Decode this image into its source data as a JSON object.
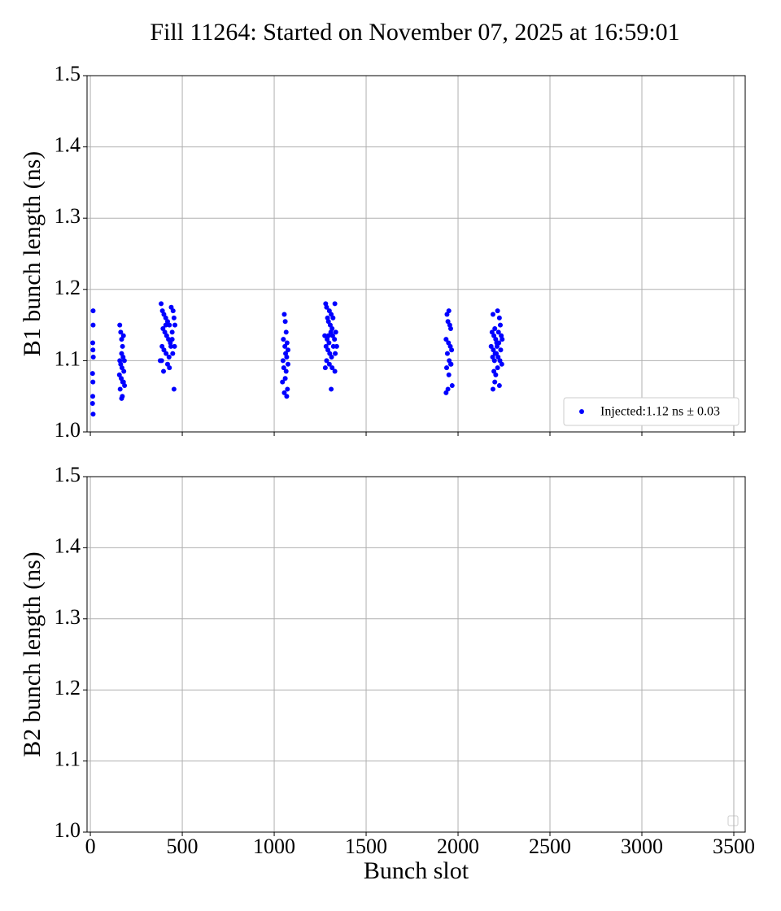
{
  "title": "Fill 11264: Started on November 07, 2025 at 16:59:01",
  "chart_data": [
    {
      "type": "scatter",
      "ylabel": "B1 bunch length (ns)",
      "xlim": [
        -18,
        3562
      ],
      "ylim": [
        1.0,
        1.5
      ],
      "xticks": [
        0,
        500,
        1000,
        1500,
        2000,
        2500,
        3000,
        3500
      ],
      "yticks": [
        {
          "value": 1.0,
          "label": "1.0"
        },
        1.1,
        1.2,
        1.3,
        1.4,
        1.5
      ],
      "xticklabels": false,
      "grid": true,
      "legend": "lower right",
      "series": [
        {
          "name": "Injected:1.12 ns ± 0.03",
          "color": "#0000ff",
          "x": [
            15,
            15,
            13,
            14,
            16,
            12,
            14,
            13,
            12,
            15,
            160,
            165,
            170,
            175,
            180,
            160,
            170,
            178,
            185,
            165,
            172,
            182,
            158,
            168,
            176,
            186,
            162,
            174,
            180,
            170,
            385,
            392,
            400,
            410,
            420,
            430,
            440,
            450,
            455,
            395,
            405,
            415,
            425,
            435,
            445,
            460,
            390,
            400,
            412,
            428,
            438,
            448,
            388,
            398,
            420,
            430,
            445,
            458,
            380,
            410,
            455,
            1055,
            1060,
            1065,
            1050,
            1070,
            1058,
            1062,
            1068,
            1048,
            1075,
            1052,
            1065,
            1060,
            1072,
            1045,
            1055,
            1068,
            1075,
            1280,
            1285,
            1300,
            1310,
            1330,
            1290,
            1295,
            1305,
            1315,
            1320,
            1335,
            1275,
            1288,
            1298,
            1308,
            1318,
            1328,
            1340,
            1282,
            1292,
            1302,
            1312,
            1322,
            1332,
            1285,
            1300,
            1315,
            1330,
            1310,
            1278,
            1295,
            1940,
            1950,
            1945,
            1955,
            1960,
            1935,
            1948,
            1958,
            1965,
            1942,
            1952,
            1962,
            1938,
            1950,
            1960,
            1945,
            1935,
            1968,
            2190,
            2200,
            2215,
            2225,
            2230,
            2185,
            2195,
            2205,
            2210,
            2220,
            2235,
            2240,
            2180,
            2192,
            2202,
            2212,
            2222,
            2232,
            2188,
            2198,
            2208,
            2218,
            2228,
            2238,
            2195,
            2205,
            2215,
            2200,
            2190,
            2225
          ],
          "values": [
            1.17,
            1.15,
            1.125,
            1.115,
            1.105,
            1.082,
            1.07,
            1.05,
            1.04,
            1.025,
            1.15,
            1.14,
            1.13,
            1.12,
            1.135,
            1.1,
            1.11,
            1.105,
            1.1,
            1.095,
            1.09,
            1.085,
            1.08,
            1.075,
            1.07,
            1.065,
            1.06,
            1.05,
            1.07,
            1.047,
            1.18,
            1.17,
            1.165,
            1.16,
            1.155,
            1.15,
            1.175,
            1.17,
            1.16,
            1.145,
            1.14,
            1.135,
            1.13,
            1.125,
            1.14,
            1.15,
            1.12,
            1.115,
            1.11,
            1.105,
            1.12,
            1.11,
            1.1,
            1.085,
            1.095,
            1.09,
            1.13,
            1.12,
            1.1,
            1.15,
            1.06,
            1.165,
            1.155,
            1.14,
            1.13,
            1.125,
            1.12,
            1.11,
            1.105,
            1.1,
            1.095,
            1.09,
            1.085,
            1.075,
            1.06,
            1.07,
            1.055,
            1.05,
            1.115,
            1.18,
            1.175,
            1.17,
            1.165,
            1.18,
            1.16,
            1.155,
            1.15,
            1.145,
            1.16,
            1.14,
            1.135,
            1.13,
            1.125,
            1.14,
            1.135,
            1.13,
            1.12,
            1.12,
            1.115,
            1.11,
            1.105,
            1.12,
            1.11,
            1.1,
            1.095,
            1.09,
            1.085,
            1.06,
            1.09,
            1.135,
            1.165,
            1.17,
            1.155,
            1.15,
            1.145,
            1.13,
            1.125,
            1.12,
            1.115,
            1.11,
            1.1,
            1.095,
            1.09,
            1.08,
            1.095,
            1.06,
            1.055,
            1.065,
            1.165,
            1.145,
            1.17,
            1.16,
            1.15,
            1.14,
            1.135,
            1.13,
            1.125,
            1.14,
            1.135,
            1.13,
            1.12,
            1.115,
            1.11,
            1.12,
            1.125,
            1.115,
            1.105,
            1.1,
            1.11,
            1.105,
            1.1,
            1.095,
            1.085,
            1.08,
            1.09,
            1.07,
            1.06,
            1.065
          ]
        }
      ]
    },
    {
      "type": "scatter",
      "ylabel": "B2 bunch length (ns)",
      "xlabel": "Bunch slot",
      "xlim": [
        -18,
        3562
      ],
      "ylim": [
        1.0,
        1.5
      ],
      "xticks": [
        0,
        500,
        1000,
        1500,
        2000,
        2500,
        3000,
        3500
      ],
      "yticks": [
        {
          "value": 1.0,
          "label": "1.0"
        },
        1.1,
        1.2,
        1.3,
        1.4,
        1.5
      ],
      "xticklabels": true,
      "grid": true,
      "legend": "lower right",
      "series": []
    }
  ]
}
